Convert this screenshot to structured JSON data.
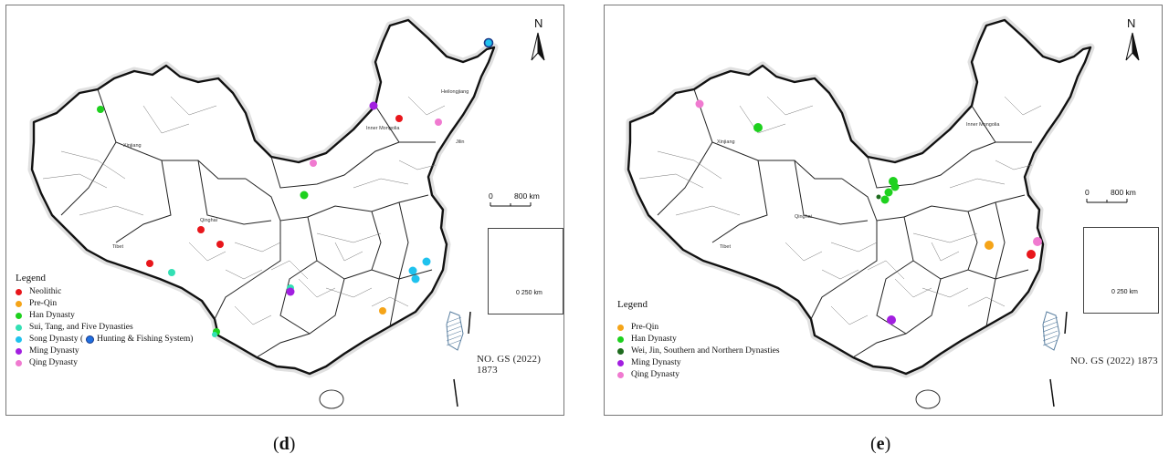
{
  "captions": {
    "d": "d",
    "e": "e"
  },
  "map_common": {
    "north": "N",
    "scale_zero": "0",
    "scale_max": "800 km",
    "inset_scale": "0  250 km",
    "approval_no": "NO. GS (2022) 1873",
    "region_labels": [
      "Xinjiang",
      "Tibet",
      "Qinghai",
      "Inner Mongolia",
      "Heilongjiang",
      "Jilin"
    ]
  },
  "colors": {
    "neolithic": "#e8161b",
    "pre_qin": "#f5a418",
    "han": "#1ed11e",
    "sui_tang": "#33e0b4",
    "song": "#1fc2ee",
    "wei_jin": "#1e6b1e",
    "ming": "#a21fe0",
    "qing": "#f07ad0",
    "hunting": "#1f6fe0"
  },
  "panel_d": {
    "legend_title": "Legend",
    "legend": [
      {
        "label": "Neolithic",
        "color": "#e8161b"
      },
      {
        "label": "Pre-Qin",
        "color": "#f5a418"
      },
      {
        "label": "Han Dynasty",
        "color": "#1ed11e"
      },
      {
        "label": "Sui, Tang, and Five Dynasties",
        "color": "#33e0b4"
      },
      {
        "label": "Song Dynasty (",
        "label_after": "Hunting & Fishing System)",
        "color": "#1fc2ee"
      },
      {
        "label": "Ming Dynasty",
        "color": "#a21fe0"
      },
      {
        "label": "Qing Dynasty",
        "color": "#f07ad0"
      }
    ]
  },
  "panel_e": {
    "legend_title": "Legend",
    "legend": [
      {
        "label": "Pre-Qin",
        "color": "#f5a418"
      },
      {
        "label": "Han Dynasty",
        "color": "#1ed11e"
      },
      {
        "label": "Wei, Jin, Southern and Northern Dynasties",
        "color": "#1e6b1e"
      },
      {
        "label": "Ming Dynasty",
        "color": "#a21fe0"
      },
      {
        "label": "Qing Dynasty",
        "color": "#f07ad0"
      }
    ]
  }
}
